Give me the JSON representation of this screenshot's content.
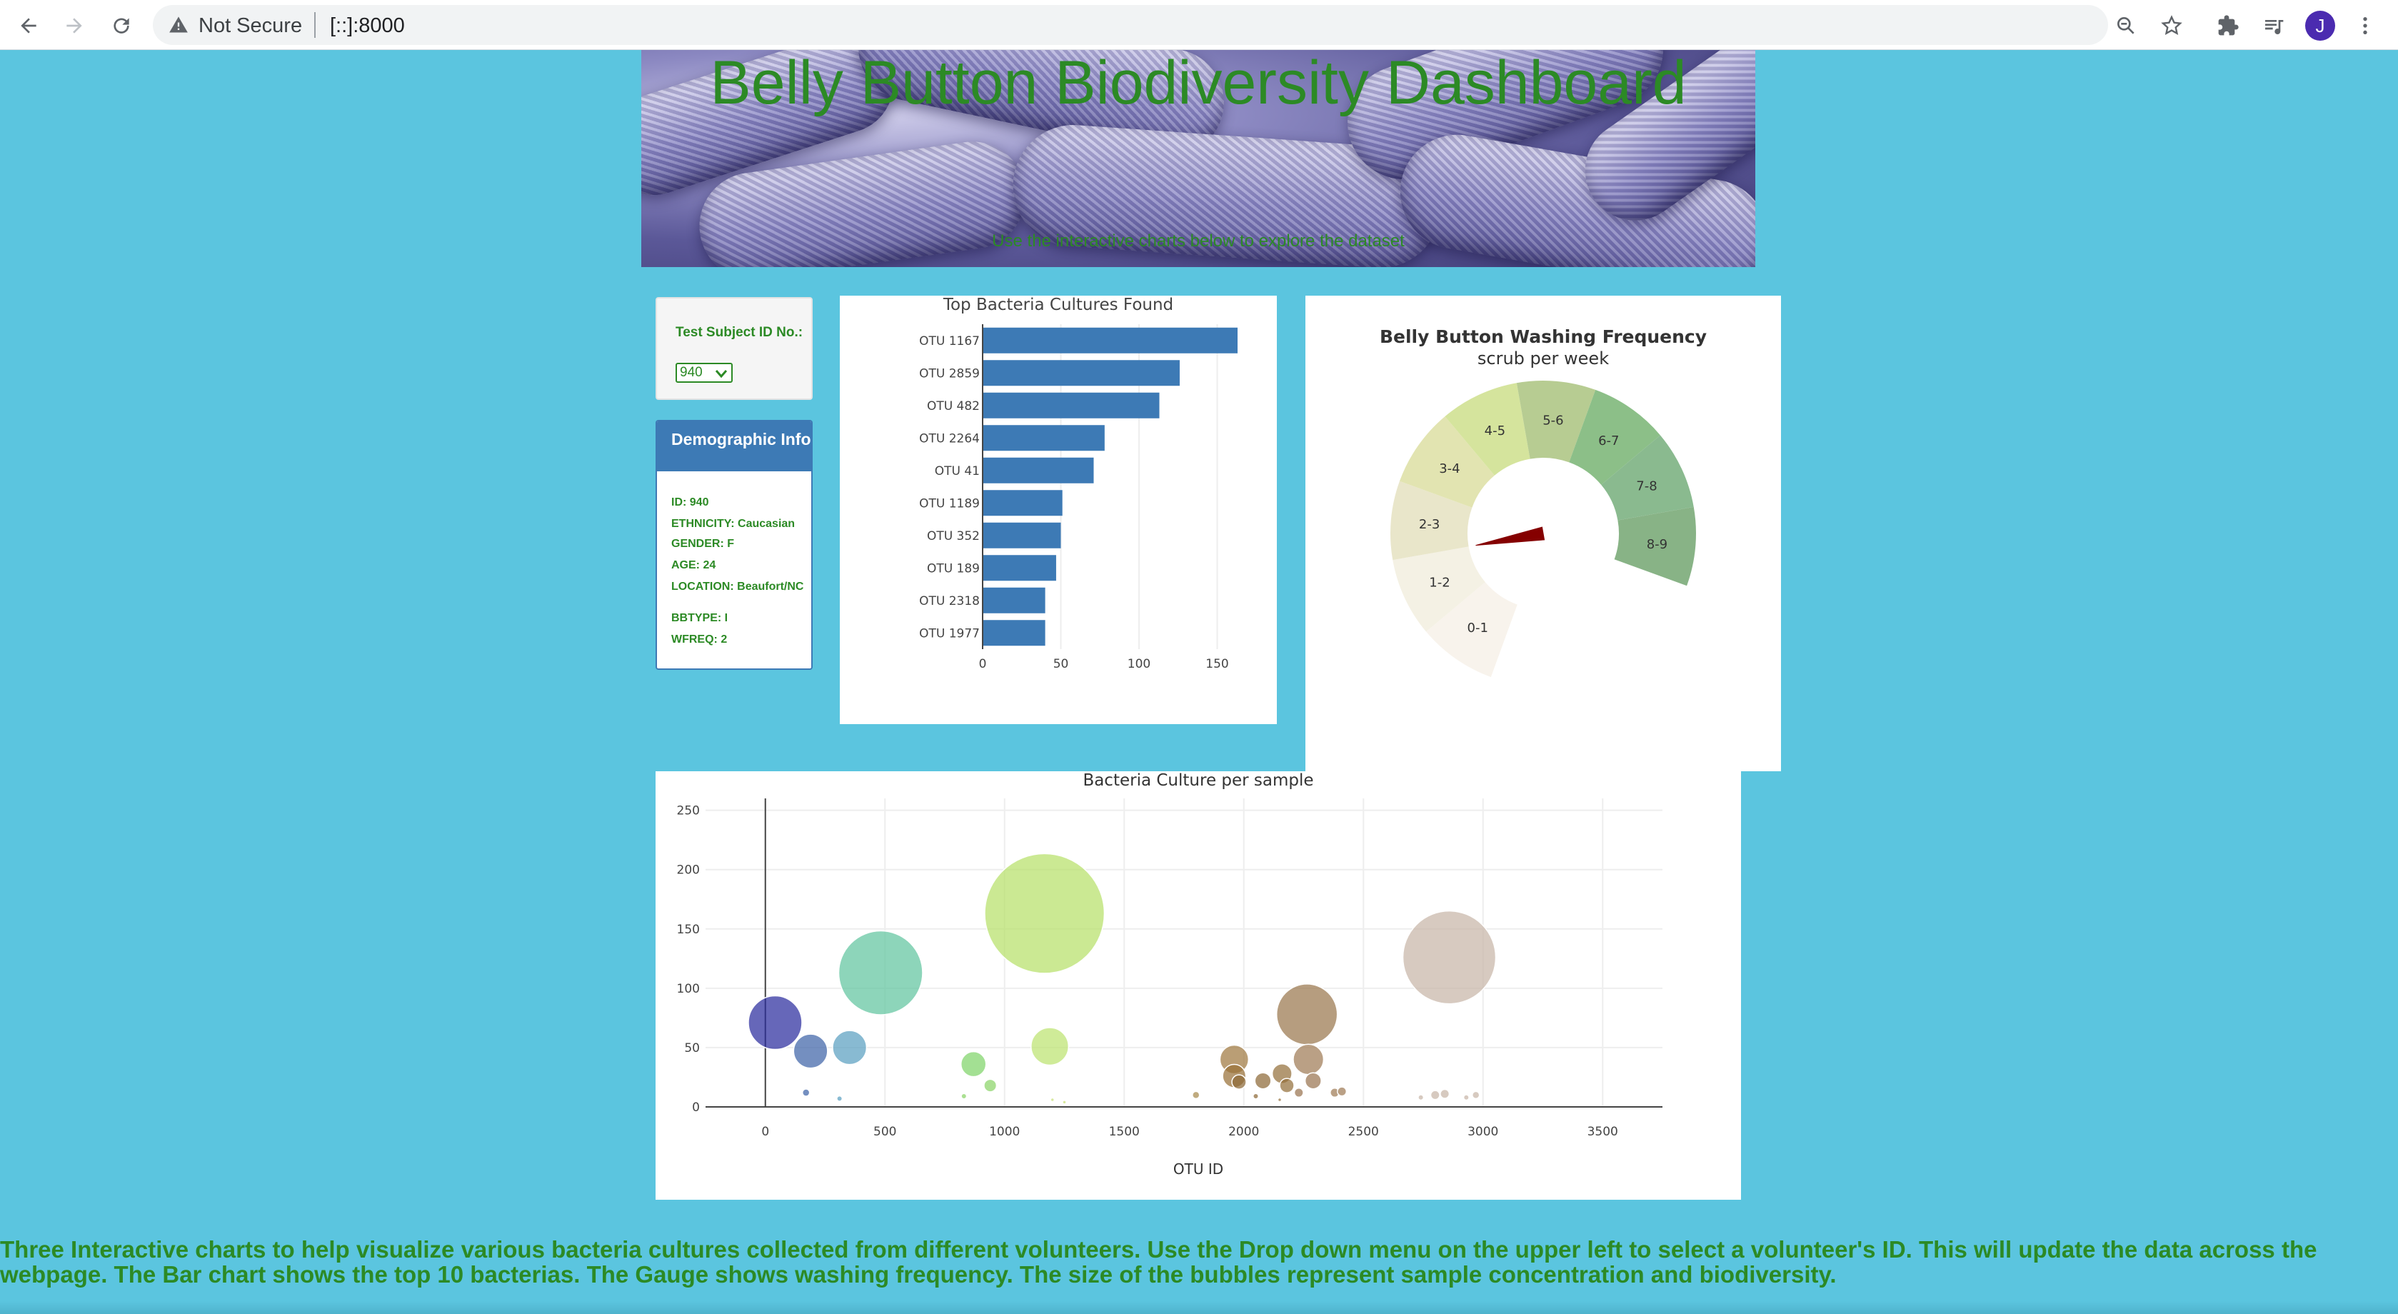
{
  "browser": {
    "security_label": "Not Secure",
    "url": "[::]:8000",
    "avatar_letter": "J"
  },
  "banner": {
    "title": "Belly Button Biodiversity Dashboard",
    "subtitle": "Use the interactive charts below to explore the dataset"
  },
  "selector": {
    "label": "Test Subject ID No.:",
    "selected": "940"
  },
  "demographic": {
    "title": "Demographic Info",
    "items": [
      "ID: 940",
      "ETHNICITY: Caucasian",
      "GENDER: F",
      "AGE: 24",
      "LOCATION: Beaufort/NC",
      "BBTYPE: I",
      "WFREQ: 2"
    ]
  },
  "chart_data": [
    {
      "type": "bar",
      "orientation": "horizontal",
      "title": "Top Bacteria Cultures Found",
      "categories": [
        "OTU 1167",
        "OTU 2859",
        "OTU 482",
        "OTU 2264",
        "OTU 41",
        "OTU 1189",
        "OTU 352",
        "OTU 189",
        "OTU 2318",
        "OTU 1977"
      ],
      "values": [
        163,
        126,
        113,
        78,
        71,
        51,
        50,
        47,
        40,
        40
      ],
      "xlim": [
        0,
        163
      ],
      "xticks": [
        0,
        50,
        100,
        150
      ],
      "color": "#3d7ab5"
    },
    {
      "type": "gauge",
      "title": "Belly Button Washing Frequency",
      "subtitle": "scrub per week",
      "segments": [
        "0-1",
        "1-2",
        "2-3",
        "3-4",
        "4-5",
        "5-6",
        "6-7",
        "7-8",
        "8-9"
      ],
      "colors": [
        "#f8f3ec",
        "#f4f1e4",
        "#e9e6ca",
        "#e2e4b1",
        "#d5e49d",
        "#b7cc92",
        "#8cbf88",
        "#8aba8f",
        "#88b386"
      ],
      "value": 2,
      "needle_color": "#850000"
    },
    {
      "type": "scatter",
      "title": "Bacteria Culture per sample",
      "xlabel": "OTU ID",
      "xlim": [
        -250,
        3750
      ],
      "ylim": [
        0,
        260
      ],
      "xticks": [
        0,
        500,
        1000,
        1500,
        2000,
        2500,
        3000,
        3500
      ],
      "yticks": [
        0,
        50,
        100,
        150,
        200,
        250
      ],
      "points": [
        {
          "x": 41,
          "y": 71,
          "r": 30,
          "color": "#2b2d9e"
        },
        {
          "x": 189,
          "y": 47,
          "r": 19,
          "color": "#3e64a8"
        },
        {
          "x": 352,
          "y": 50,
          "r": 19,
          "color": "#5aa0c0"
        },
        {
          "x": 482,
          "y": 113,
          "r": 47,
          "color": "#61c5a0"
        },
        {
          "x": 170,
          "y": 12,
          "r": 4,
          "color": "#3e64a8"
        },
        {
          "x": 310,
          "y": 7,
          "r": 3,
          "color": "#5aa0c0"
        },
        {
          "x": 870,
          "y": 36,
          "r": 14,
          "color": "#7fd46a"
        },
        {
          "x": 940,
          "y": 18,
          "r": 7,
          "color": "#8ad468"
        },
        {
          "x": 830,
          "y": 9,
          "r": 3,
          "color": "#8ad468"
        },
        {
          "x": 1167,
          "y": 163,
          "r": 67,
          "color": "#b7e06a"
        },
        {
          "x": 1189,
          "y": 51,
          "r": 21,
          "color": "#bde370"
        },
        {
          "x": 1200,
          "y": 6,
          "r": 2,
          "color": "#c9e07a"
        },
        {
          "x": 1250,
          "y": 4,
          "r": 2,
          "color": "#c9e07a"
        },
        {
          "x": 1800,
          "y": 10,
          "r": 4,
          "color": "#a88a4e"
        },
        {
          "x": 1960,
          "y": 40,
          "r": 16,
          "color": "#a07840"
        },
        {
          "x": 1960,
          "y": 26,
          "r": 13,
          "color": "#987038"
        },
        {
          "x": 1980,
          "y": 21,
          "r": 8,
          "color": "#8e6a38"
        },
        {
          "x": 2050,
          "y": 9,
          "r": 3,
          "color": "#8e6a38"
        },
        {
          "x": 2080,
          "y": 22,
          "r": 9,
          "color": "#8e6a38"
        },
        {
          "x": 2160,
          "y": 28,
          "r": 11,
          "color": "#94703c"
        },
        {
          "x": 2180,
          "y": 18,
          "r": 8,
          "color": "#94703c"
        },
        {
          "x": 2264,
          "y": 78,
          "r": 34,
          "color": "#9a774e"
        },
        {
          "x": 2270,
          "y": 40,
          "r": 17,
          "color": "#a07c56"
        },
        {
          "x": 2290,
          "y": 22,
          "r": 9,
          "color": "#9a7450"
        },
        {
          "x": 2230,
          "y": 12,
          "r": 5,
          "color": "#9a7450"
        },
        {
          "x": 2380,
          "y": 12,
          "r": 5,
          "color": "#a07c56"
        },
        {
          "x": 2410,
          "y": 13,
          "r": 5,
          "color": "#a07c56"
        },
        {
          "x": 2150,
          "y": 6,
          "r": 2,
          "color": "#94703c"
        },
        {
          "x": 2859,
          "y": 126,
          "r": 52,
          "color": "#c7b6a8"
        },
        {
          "x": 2740,
          "y": 8,
          "r": 3,
          "color": "#c7b6a8"
        },
        {
          "x": 2800,
          "y": 10,
          "r": 5,
          "color": "#c7b6a8"
        },
        {
          "x": 2840,
          "y": 11,
          "r": 5,
          "color": "#c7b6a8"
        },
        {
          "x": 2930,
          "y": 8,
          "r": 3,
          "color": "#c7b6a8"
        },
        {
          "x": 2970,
          "y": 10,
          "r": 4,
          "color": "#c7b6a8"
        }
      ]
    }
  ],
  "footer_text": "Three Interactive charts to help visualize various bacteria cultures collected from different volunteers. Use the Drop down menu on the upper left to select a volunteer's ID. This will update the data across the webpage. The Bar chart shows the top 10 bacterias. The Gauge shows washing frequency. The size of the bubbles represent sample concentration and biodiversity."
}
